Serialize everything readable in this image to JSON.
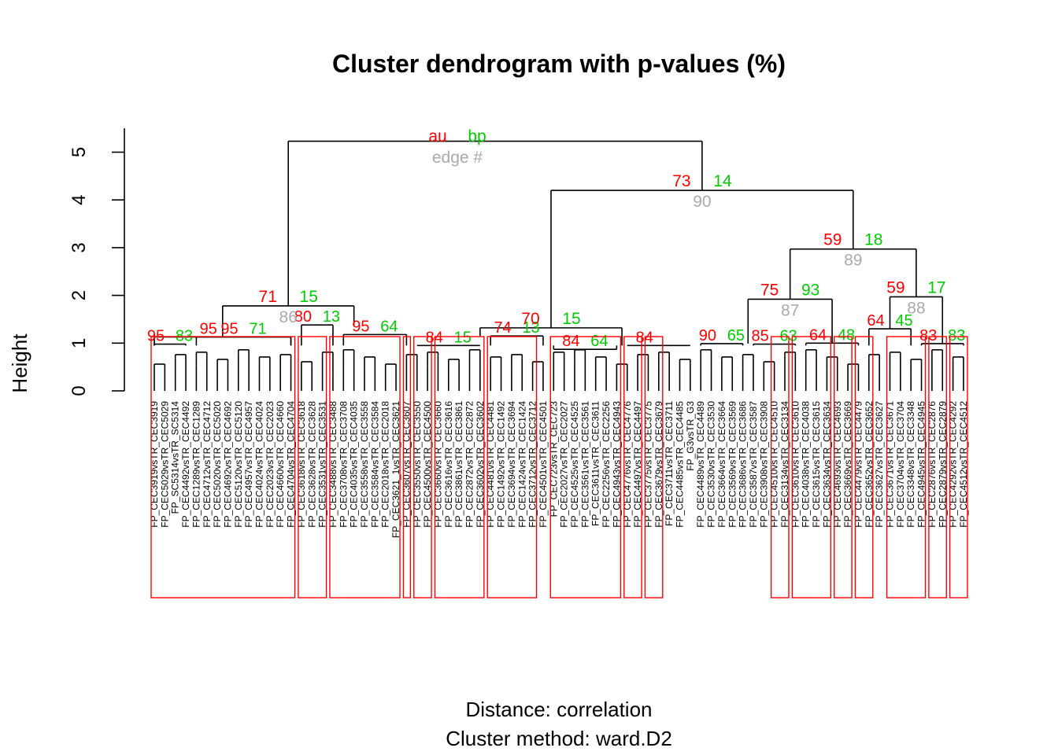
{
  "chart_data": {
    "type": "dendrogram",
    "title": "Cluster dendrogram with p-values (%)",
    "ylabel": "Height",
    "xlabel_line1": "Distance:  correlation",
    "xlabel_line2": "Cluster method: ward.D2",
    "ylim": [
      0,
      5.5
    ],
    "y_ticks": [
      "0",
      "1",
      "2",
      "3",
      "4",
      "5"
    ],
    "legend": {
      "au": "au",
      "bp": "bp",
      "edge": "edge #",
      "position": "top-center"
    },
    "colors": {
      "au": "#ff0000",
      "bp": "#00cc00",
      "edge": "#aaaaaa",
      "box": "#ff0000",
      "line": "#000000"
    },
    "leaf_labels": [
      "FP_CEC3919vsTR_CEC3919",
      "FP_CEC5029vsTR_CEC5029",
      "FP_SC5314vsTR_SC5314",
      "FP_CEC4492vsTR_CEC4492",
      "FP_CEC1289vsTR_CEC1289",
      "FP_CEC4712vsTR_CEC4712",
      "FP_CEC5020vsTR_CEC5020",
      "FP_CEC4692vsTR_CEC4692",
      "FP_CEC5120vsTR_CEC5120",
      "FP_CEC4957vsTR_CEC4957",
      "FP_CEC4024vsTR_CEC4024",
      "FP_CEC2023vsTR_CEC2023",
      "FP_CEC4660vsTR_CEC4660",
      "FP_CEC4704vsTR_CEC4704",
      "FP_CEC3618vsTR_CEC3618",
      "FP_CEC3628vsTR_CEC3628",
      "FP_CEC3531vsTR_CEC3531",
      "FP_CEC3488vsTR_CEC3488",
      "FP_CEC3708vsTR_CEC3708",
      "FP_CEC4035vsTR_CEC4035",
      "FP_CEC3558vsTR_CEC3558",
      "FP_CEC3584vsTR_CEC3584",
      "FP_CEC2018vsTR_CEC2018",
      "FP_CEC3621_1vsTR_CEC3621",
      "FP_CEC3607vsTR_CEC3607",
      "FP_CEC3550vsTR_CEC3550",
      "FP_CEC4500vsTR_CEC4500",
      "FP_CEC3660vsTR_CEC3660",
      "FP_CEC3616vsTR_CEC3616",
      "FP_CEC3861vsTR_CEC3861",
      "FP_CEC2872vsTR_CEC2872",
      "FP_CEC3602vsTR_CEC3602",
      "FP_CEC4481vsTR_CEC4481",
      "FP_CEC1492vsTR_CEC1492",
      "FP_CEC3694vsTR_CEC3694",
      "FP_CEC1424vsTR_CEC1424",
      "FP_CEC3712vsTR_CEC3712",
      "FP_CEC4501vsTR_CEC4501",
      "FP_CEC723vsTR_CEC723",
      "FP_CEC2027vsTR_CEC2027",
      "FP_CEC4525vsTR_CEC4525",
      "FP_CEC3561vsTR_CEC3561",
      "FP_CEC3611vsTR_CEC3611",
      "FP_CEC2256vsTR_CEC2256",
      "FP_CEC4943vsTR_CEC4943",
      "FP_CEC4776vsTR_CEC4776",
      "FP_CEC4497vsTR_CEC4497",
      "FP_CEC3775vsTR_CEC3775",
      "FP_CEC3679vsTR_CEC3679",
      "FP_CEC3711vsTR_CEC3711",
      "FP_CEC4485vsTR_CEC4485",
      "FP_G3vsTR_G3",
      "FP_CEC4489vsTR_CEC4489",
      "FP_CEC3530vsTR_CEC3530",
      "FP_CEC3664vsTR_CEC3664",
      "FP_CEC3569vsTR_CEC3569",
      "FP_CEC3686vsTR_CEC3686",
      "FP_CEC3587vsTR_CEC3587",
      "FP_CEC3908vsTR_CEC3908",
      "FP_CEC4510vsTR_CEC4510",
      "FP_CEC3134vsTR_CEC3134",
      "FP_CEC3610vsTR_CEC3610",
      "FP_CEC4038vsTR_CEC4038",
      "FP_CEC3615vsTR_CEC3615",
      "FP_CEC3634vsTR_CEC3634",
      "FP_CEC4693vsTR_CEC4693",
      "FP_CEC3669vsTR_CEC3669",
      "FP_CEC4479vsTR_CEC4479",
      "FP_CEC3652vsTR_CEC3652",
      "FP_CEC3627vsTR_CEC3627",
      "FP_CEC3671vsTR_CEC3671",
      "FP_CEC3704vsTR_CEC3704",
      "FP_CEC3348vsTR_CEC3348",
      "FP_CEC4945vsTR_CEC4945",
      "FP_CEC2876vsTR_CEC2876",
      "FP_CEC2879vsTR_CEC2879",
      "FP_CEC4292vsTR_CEC4292",
      "FP_CEC4512vsTR_CEC4512"
    ],
    "major_clusters": [
      {
        "left": [
          0,
          13
        ],
        "right": [
          14,
          24
        ],
        "height": 1.78,
        "au": "71",
        "bp": "15",
        "edge": "86"
      },
      {
        "left": [
          25,
          37
        ],
        "right": [
          38,
          51
        ],
        "height": 1.32,
        "au": "70",
        "bp": "15",
        "edge": ""
      },
      {
        "left": [
          52,
          61
        ],
        "right": [
          62,
          67
        ],
        "height": 1.92,
        "au": "75",
        "bp": "93",
        "edge": "87"
      },
      {
        "left": [
          68,
          72
        ],
        "right": [
          73,
          77
        ],
        "height": 1.97,
        "au": "59",
        "bp": "17",
        "edge": "88"
      },
      {
        "left": [
          52,
          67
        ],
        "right": [
          68,
          77
        ],
        "height": 2.97,
        "au": "59",
        "bp": "18",
        "edge": "89"
      },
      {
        "left": [
          25,
          51
        ],
        "right": [
          52,
          77
        ],
        "height": 4.2,
        "au": "73",
        "bp": "14",
        "edge": "90"
      },
      {
        "left": [
          0,
          24
        ],
        "right": [
          25,
          77
        ],
        "height": 5.23,
        "au": "au",
        "bp": "bp",
        "edge": ""
      }
    ],
    "sub_merges": [
      {
        "leaves": [
          0,
          3
        ],
        "height": 0.98,
        "au": "95",
        "bp": "83"
      },
      {
        "leaves": [
          4,
          13
        ],
        "height": 1.13,
        "au": "95",
        "bp": "71"
      },
      {
        "leaves": [
          0,
          13
        ],
        "height": 1.13,
        "au": "95",
        "bp": ""
      },
      {
        "leaves": [
          14,
          17
        ],
        "height": 1.38,
        "au": "80",
        "bp": "13"
      },
      {
        "leaves": [
          18,
          24
        ],
        "height": 1.18,
        "au": "95",
        "bp": "64"
      },
      {
        "leaves": [
          25,
          31
        ],
        "height": 0.95,
        "au": "84",
        "bp": "15"
      },
      {
        "leaves": [
          32,
          37
        ],
        "height": 1.15,
        "au": "74",
        "bp": "13"
      },
      {
        "leaves": [
          38,
          44
        ],
        "height": 0.87,
        "au": "84",
        "bp": "64"
      },
      {
        "leaves": [
          45,
          51
        ],
        "height": 0.95,
        "au": "84",
        "bp": ""
      },
      {
        "leaves": [
          52,
          56
        ],
        "height": 0.99,
        "au": "90",
        "bp": "65"
      },
      {
        "leaves": [
          57,
          61
        ],
        "height": 0.98,
        "au": "85",
        "bp": "63"
      },
      {
        "leaves": [
          62,
          67
        ],
        "height": 1.0,
        "au": "64",
        "bp": "48"
      },
      {
        "leaves": [
          68,
          72
        ],
        "height": 1.3,
        "au": "64",
        "bp": "45"
      },
      {
        "leaves": [
          73,
          77
        ],
        "height": 0.99,
        "au": "83",
        "bp": "83"
      }
    ],
    "highlight_boxes": [
      [
        0,
        13
      ],
      [
        14,
        16
      ],
      [
        17,
        23
      ],
      [
        24,
        24
      ],
      [
        25,
        26
      ],
      [
        27,
        31
      ],
      [
        32,
        36
      ],
      [
        38,
        44
      ],
      [
        45,
        46
      ],
      [
        47,
        48
      ],
      [
        59,
        60
      ],
      [
        61,
        64
      ],
      [
        65,
        66
      ],
      [
        67,
        68
      ],
      [
        70,
        73
      ],
      [
        74,
        75
      ],
      [
        76,
        77
      ]
    ],
    "grid": false
  }
}
